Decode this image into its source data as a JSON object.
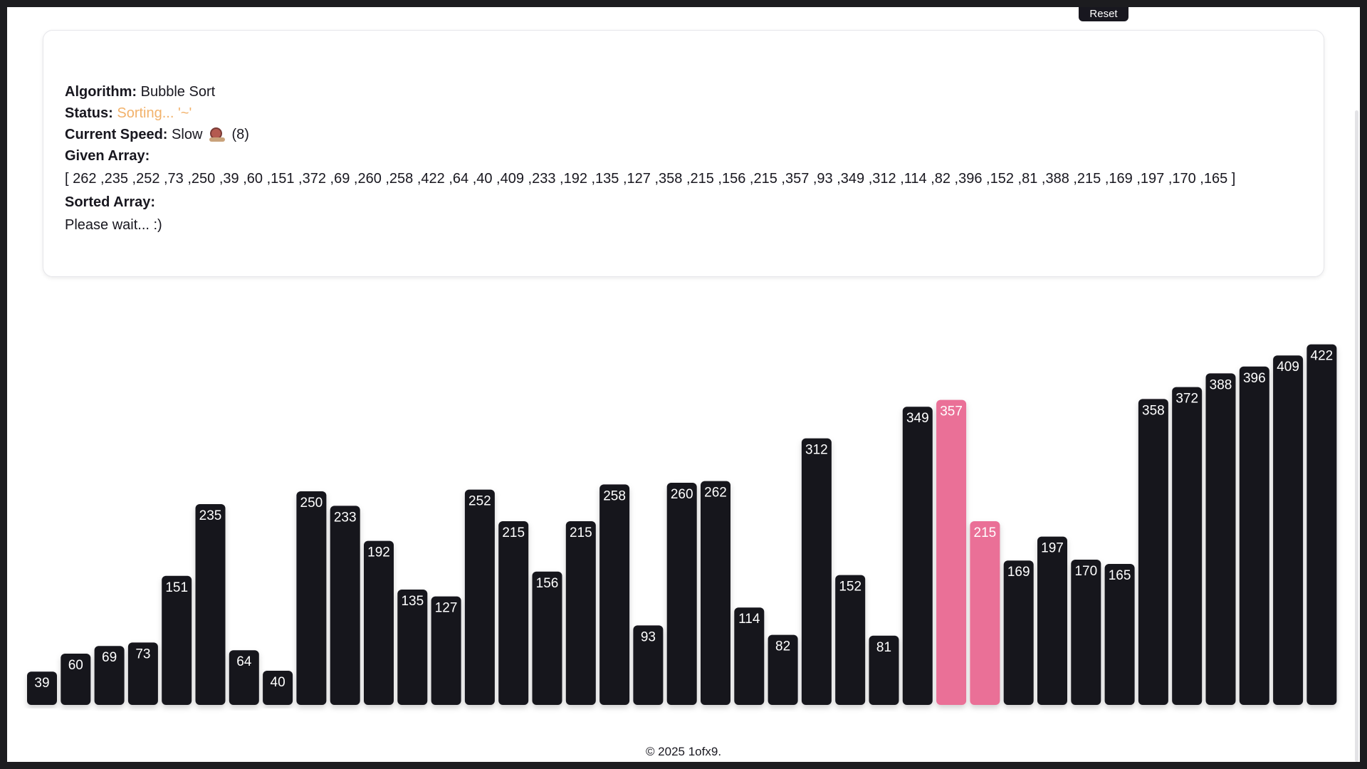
{
  "header": {
    "reset_label": "Reset"
  },
  "info": {
    "algorithm_label": "Algorithm:",
    "algorithm_value": "Bubble Sort",
    "status_label": "Status:",
    "status_value": "Sorting... '~'",
    "speed_label": "Current Speed:",
    "speed_value": "Slow",
    "speed_icon": "snail-icon",
    "speed_level": "(8)",
    "given_label": "Given Array:",
    "given_array_text": "[ 262 ,235 ,252 ,73 ,250 ,39 ,60 ,151 ,372 ,69 ,260 ,258 ,422 ,64 ,40 ,409 ,233 ,192 ,135 ,127 ,358 ,215 ,156 ,215 ,357 ,93 ,349 ,312 ,114 ,82 ,396 ,152 ,81 ,388 ,215 ,169 ,197 ,170 ,165 ]",
    "sorted_label": "Sorted Array:",
    "sorted_value": "Please wait... :)"
  },
  "colors": {
    "bar": "#18171f",
    "bar_active": "#ea7097",
    "bar_text": "#ffffff",
    "status": "#f2b26b"
  },
  "chart_data": {
    "type": "bar",
    "values": [
      39,
      60,
      69,
      73,
      151,
      235,
      64,
      40,
      250,
      233,
      192,
      135,
      127,
      252,
      215,
      156,
      215,
      258,
      93,
      260,
      262,
      114,
      82,
      312,
      152,
      81,
      349,
      357,
      215,
      169,
      197,
      170,
      165,
      358,
      372,
      388,
      396,
      409,
      422
    ],
    "highlighted_indices": [
      27,
      28
    ]
  },
  "footer": {
    "copyright": "© 2025 1ofx9."
  }
}
